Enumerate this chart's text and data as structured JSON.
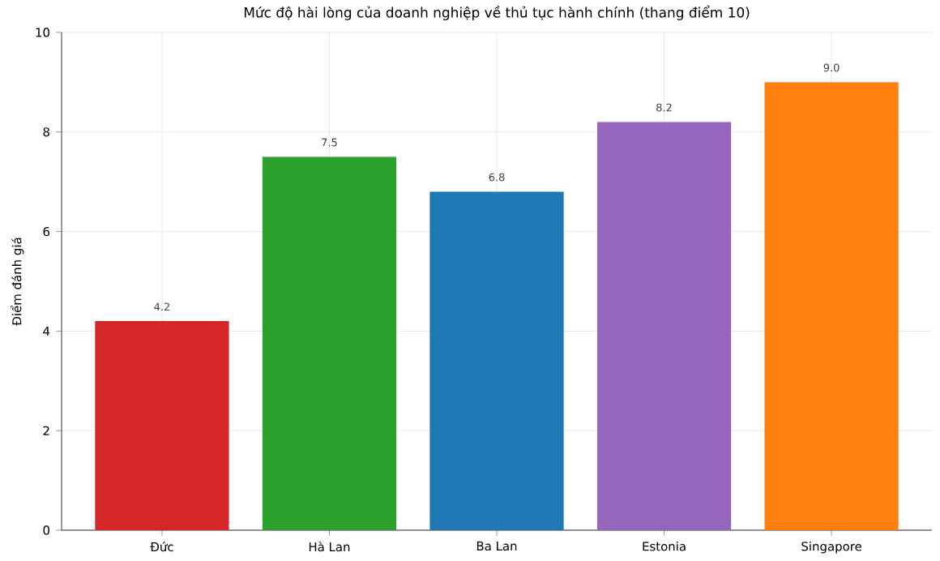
{
  "chart_data": {
    "type": "bar",
    "title": "Mức độ hài lòng của doanh nghiệp về thủ tục hành chính (thang điểm 10)",
    "ylabel": "Điểm đánh giá",
    "categories": [
      "Đức",
      "Hà Lan",
      "Ba Lan",
      "Estonia",
      "Singapore"
    ],
    "values": [
      4.2,
      7.5,
      6.8,
      8.2,
      9.0
    ],
    "colors": [
      "#d62728",
      "#2ca02c",
      "#1f77b4",
      "#9467bd",
      "#ff7f0e"
    ],
    "value_labels": [
      "4.2",
      "7.5",
      "6.8",
      "8.2",
      "9.0"
    ],
    "ylim": [
      0,
      10
    ],
    "yticks": [
      0,
      2,
      4,
      6,
      8,
      10
    ],
    "grid": true
  }
}
